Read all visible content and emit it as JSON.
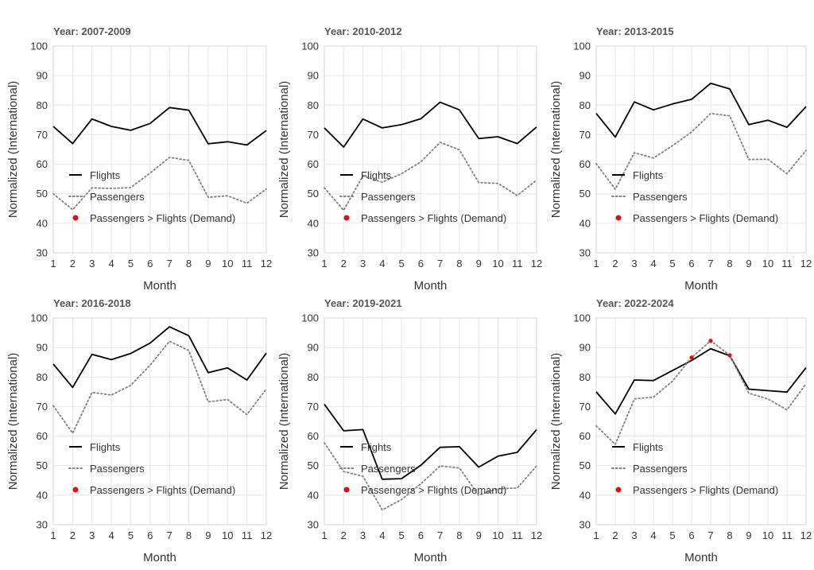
{
  "chart_data": [
    {
      "type": "line",
      "title": "Year: 2007-2009",
      "xlabel": "Month",
      "ylabel": "Normalized (International)",
      "x": [
        1,
        2,
        3,
        4,
        5,
        6,
        7,
        8,
        9,
        10,
        11,
        12
      ],
      "ylim": [
        30,
        100
      ],
      "yticks": [
        30,
        40,
        50,
        60,
        70,
        80,
        90,
        100
      ],
      "grid": true,
      "legend_position": "bottom-left",
      "series": [
        {
          "name": "Flights",
          "style": "solid",
          "color": "#000000",
          "values": [
            72.8,
            67.0,
            75.3,
            72.8,
            71.5,
            73.8,
            79.2,
            78.3,
            66.9,
            67.6,
            66.5,
            71.4
          ]
        },
        {
          "name": "Passengers",
          "style": "dotted",
          "color": "#808080",
          "values": [
            50.0,
            44.6,
            52.0,
            51.8,
            52.1,
            57.0,
            62.3,
            61.3,
            48.8,
            49.3,
            46.8,
            51.6
          ]
        }
      ],
      "demand_points": [],
      "demand_label": "Passengers > Flights (Demand)",
      "demand_color": "#e01010"
    },
    {
      "type": "line",
      "title": "Year: 2010-2012",
      "xlabel": "Month",
      "ylabel": "Normalized (International)",
      "x": [
        1,
        2,
        3,
        4,
        5,
        6,
        7,
        8,
        9,
        10,
        11,
        12
      ],
      "ylim": [
        30,
        100
      ],
      "yticks": [
        30,
        40,
        50,
        60,
        70,
        80,
        90,
        100
      ],
      "grid": true,
      "legend_position": "bottom-left",
      "series": [
        {
          "name": "Flights",
          "style": "solid",
          "color": "#000000",
          "values": [
            72.3,
            65.8,
            75.3,
            72.3,
            73.4,
            75.4,
            81.0,
            78.4,
            68.7,
            69.3,
            67.0,
            72.6
          ]
        },
        {
          "name": "Passengers",
          "style": "dotted",
          "color": "#808080",
          "values": [
            52.0,
            44.4,
            56.0,
            53.9,
            56.8,
            60.8,
            67.4,
            64.9,
            53.8,
            53.5,
            49.4,
            54.6
          ]
        }
      ],
      "demand_points": [],
      "demand_label": "Passengers > Flights (Demand)",
      "demand_color": "#e01010"
    },
    {
      "type": "line",
      "title": "Year: 2013-2015",
      "xlabel": "Month",
      "ylabel": "Normalized (International)",
      "x": [
        1,
        2,
        3,
        4,
        5,
        6,
        7,
        8,
        9,
        10,
        11,
        12
      ],
      "ylim": [
        30,
        100
      ],
      "yticks": [
        30,
        40,
        50,
        60,
        70,
        80,
        90,
        100
      ],
      "grid": true,
      "legend_position": "bottom-left",
      "series": [
        {
          "name": "Flights",
          "style": "solid",
          "color": "#000000",
          "values": [
            77.2,
            69.2,
            81.1,
            78.4,
            80.4,
            82.0,
            87.4,
            85.5,
            73.4,
            74.9,
            72.5,
            79.5
          ]
        },
        {
          "name": "Passengers",
          "style": "dotted",
          "color": "#808080",
          "values": [
            60.2,
            51.5,
            63.9,
            62.1,
            66.3,
            70.9,
            77.2,
            76.4,
            61.6,
            61.7,
            56.8,
            64.7
          ]
        }
      ],
      "demand_points": [],
      "demand_label": "Passengers > Flights (Demand)",
      "demand_color": "#e01010"
    },
    {
      "type": "line",
      "title": "Year: 2016-2018",
      "xlabel": "Month",
      "ylabel": "Normalized (International)",
      "x": [
        1,
        2,
        3,
        4,
        5,
        6,
        7,
        8,
        9,
        10,
        11,
        12
      ],
      "ylim": [
        30,
        100
      ],
      "yticks": [
        30,
        40,
        50,
        60,
        70,
        80,
        90,
        100
      ],
      "grid": true,
      "legend_position": "bottom-left",
      "series": [
        {
          "name": "Flights",
          "style": "solid",
          "color": "#000000",
          "values": [
            84.4,
            76.5,
            87.7,
            85.9,
            88.0,
            91.5,
            97.0,
            94.0,
            81.5,
            83.1,
            79.0,
            88.1
          ]
        },
        {
          "name": "Passengers",
          "style": "dotted",
          "color": "#808080",
          "values": [
            70.3,
            61.0,
            74.8,
            73.9,
            77.2,
            84.0,
            92.1,
            89.0,
            71.6,
            72.4,
            67.3,
            75.9
          ]
        }
      ],
      "demand_points": [],
      "demand_label": "Passengers > Flights (Demand)",
      "demand_color": "#e01010"
    },
    {
      "type": "line",
      "title": "Year: 2019-2021",
      "xlabel": "Month",
      "ylabel": "Normalized (International)",
      "x": [
        1,
        2,
        3,
        4,
        5,
        6,
        7,
        8,
        9,
        10,
        11,
        12
      ],
      "ylim": [
        30,
        100
      ],
      "yticks": [
        30,
        40,
        50,
        60,
        70,
        80,
        90,
        100
      ],
      "grid": true,
      "legend_position": "bottom-left",
      "series": [
        {
          "name": "Flights",
          "style": "solid",
          "color": "#000000",
          "values": [
            70.8,
            61.8,
            62.2,
            45.4,
            45.6,
            50.1,
            56.2,
            56.4,
            49.5,
            53.2,
            54.5,
            62.2
          ]
        },
        {
          "name": "Passengers",
          "style": "dotted",
          "color": "#808080",
          "values": [
            57.7,
            48.0,
            46.4,
            35.0,
            38.5,
            43.8,
            49.9,
            49.2,
            40.0,
            42.2,
            42.4,
            49.9
          ]
        }
      ],
      "demand_points": [],
      "demand_label": "Passengers > Flights (Demand)",
      "demand_color": "#e01010"
    },
    {
      "type": "line",
      "title": "Year: 2022-2024",
      "xlabel": "Month",
      "ylabel": "Normalized (International)",
      "x": [
        1,
        2,
        3,
        4,
        5,
        6,
        7,
        8,
        9,
        10,
        11,
        12
      ],
      "ylim": [
        30,
        100
      ],
      "yticks": [
        30,
        40,
        50,
        60,
        70,
        80,
        90,
        100
      ],
      "grid": true,
      "legend_position": "bottom-left",
      "series": [
        {
          "name": "Flights",
          "style": "solid",
          "color": "#000000",
          "values": [
            75.0,
            67.5,
            79.0,
            78.8,
            82.2,
            85.6,
            89.6,
            87.2,
            75.9,
            75.4,
            74.9,
            83.2
          ]
        },
        {
          "name": "Passengers",
          "style": "dotted",
          "color": "#808080",
          "values": [
            63.5,
            57.2,
            72.6,
            73.2,
            78.6,
            86.6,
            92.3,
            87.4,
            74.5,
            72.6,
            68.9,
            77.8
          ]
        }
      ],
      "demand_points": [
        {
          "x": 6,
          "y": 86.6
        },
        {
          "x": 7,
          "y": 92.3
        },
        {
          "x": 8,
          "y": 87.4
        }
      ],
      "demand_label": "Passengers > Flights (Demand)",
      "demand_color": "#e01010"
    }
  ]
}
